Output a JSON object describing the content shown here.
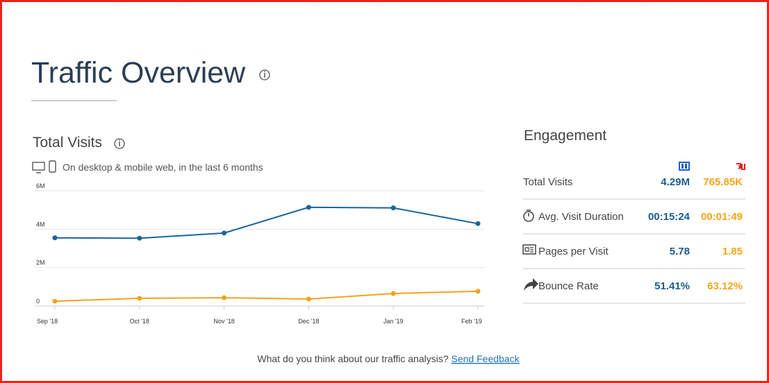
{
  "header": {
    "title": "Traffic Overview"
  },
  "visits": {
    "title": "Total Visits",
    "subtitle": "On desktop & mobile web, in the last 6 months"
  },
  "chart_data": {
    "type": "line",
    "categories": [
      "Sep '18",
      "Oct '18",
      "Nov '18",
      "Dec '18",
      "Jan '19",
      "Feb '19"
    ],
    "series": [
      {
        "color": "#1b6399",
        "values": [
          3550000,
          3530000,
          3800000,
          5140000,
          5110000,
          4290000
        ]
      },
      {
        "color": "#f5a31a",
        "values": [
          250000,
          400000,
          430000,
          360000,
          650000,
          766000
        ]
      }
    ],
    "ylim": [
      0,
      6000000
    ],
    "yticks": [
      0,
      {
        "value": 2000000,
        "label": "2M"
      },
      {
        "value": 4000000,
        "label": "4M"
      },
      {
        "value": 6000000,
        "label": "6M"
      }
    ],
    "grid": true
  },
  "engagement": {
    "title": "Engagement",
    "rows": [
      {
        "label": "Total Visits",
        "values": [
          "4.29M",
          "765.85K"
        ]
      },
      {
        "label": "Avg. Visit Duration",
        "values": [
          "00:15:24",
          "00:01:49"
        ]
      },
      {
        "label": "Pages per Visit",
        "values": [
          "5.78",
          "1.85"
        ]
      },
      {
        "label": "Bounce Rate",
        "values": [
          "51.41%",
          "63.12%"
        ]
      }
    ]
  },
  "footer": {
    "question": "What do you think about our traffic analysis?",
    "link": "Send Feedback"
  }
}
